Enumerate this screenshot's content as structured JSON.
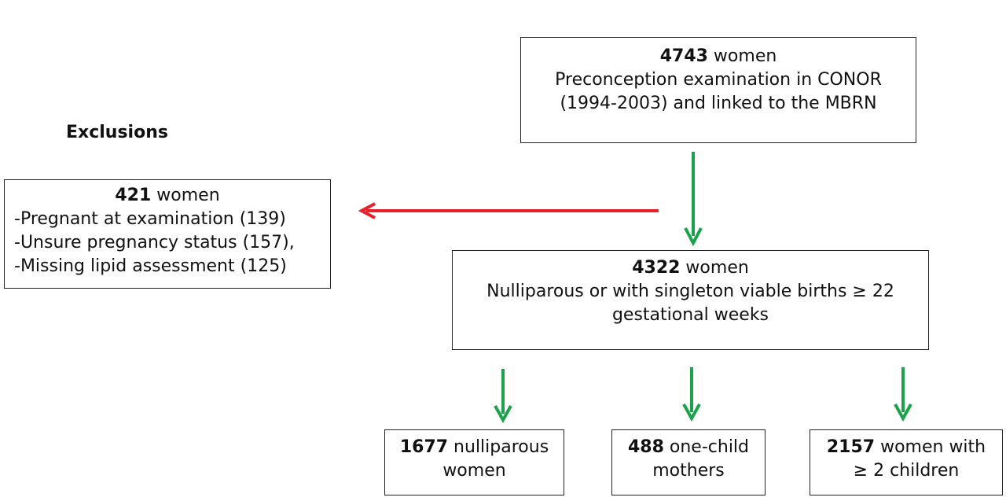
{
  "heading": "Exclusions",
  "top_box": {
    "count": "4743",
    "line1_rest": " women",
    "line2": "Preconception examination in CONOR",
    "line3": "(1994-2003) and linked to the MBRN"
  },
  "exclusion_box": {
    "count": "421",
    "line1_rest": " women",
    "items": [
      "-Pregnant at examination (139)",
      "-Unsure pregnancy status (157),",
      "-Missing lipid assessment (125)"
    ]
  },
  "middle_box": {
    "count": "4322",
    "line1_rest": " women",
    "line2": "Nulliparous or with singleton viable births ≥ 22",
    "line3": "gestational weeks"
  },
  "bottom_boxes": [
    {
      "count": "1677",
      "line1_rest": " nulliparous",
      "line2": "women"
    },
    {
      "count": "488",
      "line1_rest": " one-child",
      "line2": "mothers"
    },
    {
      "count": "2157",
      "line1_rest": " women with",
      "line2": "≥ 2 children"
    }
  ],
  "colors": {
    "flow_arrow": "#1aa34a",
    "exclusion_arrow": "#e8202a"
  }
}
